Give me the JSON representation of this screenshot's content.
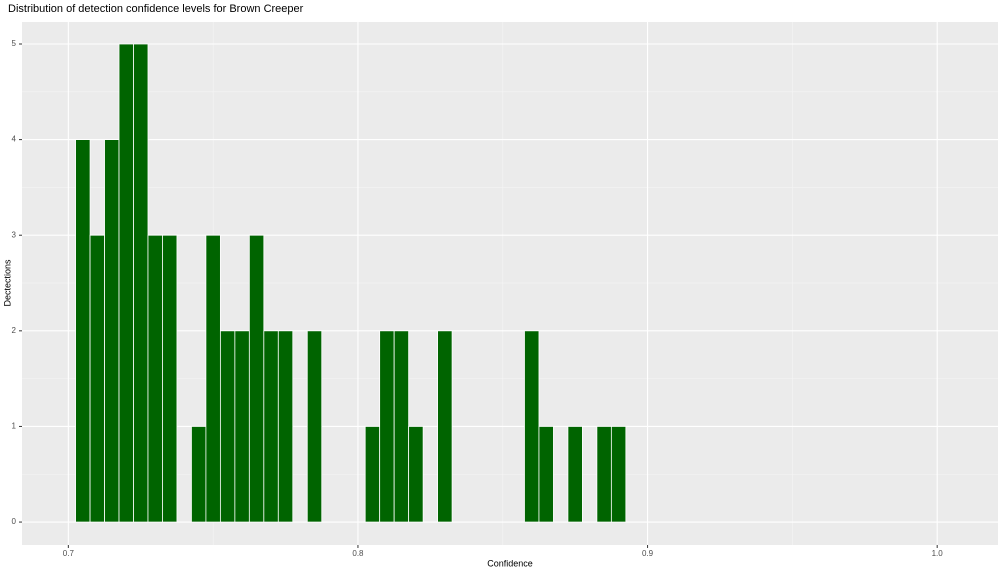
{
  "chart_data": {
    "type": "histogram",
    "title": "Distribution of detection confidence levels for Brown Creeper",
    "x_label": "Confidence",
    "y_label": "Dectections",
    "bins": [
      0.7025,
      0.7075,
      0.7125,
      0.7175,
      0.7225,
      0.7275,
      0.7325,
      0.7375,
      0.7425,
      0.7475,
      0.7525,
      0.7575,
      0.7625,
      0.7675,
      0.7725,
      0.7775,
      0.7825,
      0.7875,
      0.7925,
      0.7975,
      0.8025,
      0.8075,
      0.8125,
      0.8175,
      0.8225,
      0.8275,
      0.8325,
      0.8375,
      0.8425,
      0.8475,
      0.8525,
      0.8575,
      0.8625,
      0.8675,
      0.8725,
      0.8775,
      0.8825,
      0.8875,
      0.8925
    ],
    "values": [
      4,
      3,
      4,
      5,
      5,
      3,
      3,
      0,
      1,
      3,
      2,
      2,
      3,
      2,
      2,
      0,
      2,
      0,
      0,
      0,
      1,
      2,
      2,
      1,
      0,
      2,
      0,
      0,
      0,
      0,
      0,
      2,
      1,
      0,
      1,
      0,
      1,
      1
    ],
    "color": "#006400",
    "xlim": [
      0.684,
      1.021
    ],
    "xticks": [
      0.7,
      0.8,
      0.9,
      {
        "value": 1,
        "label": "1.0"
      }
    ],
    "ylim": [
      -0.24,
      5.23
    ],
    "yticks": [
      0,
      1,
      2,
      3,
      4,
      5
    ],
    "grid": true
  }
}
